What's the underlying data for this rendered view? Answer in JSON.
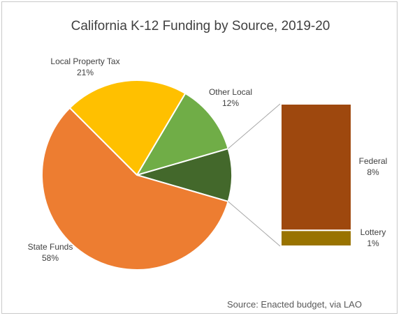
{
  "chart_data": {
    "type": "pie",
    "subtype": "bar-of-pie",
    "title": "California K-12 Funding by Source, 2019-20",
    "source": "Source: Enacted budget, via LAO",
    "slices": [
      {
        "label": "State Funds",
        "value_label": "58%",
        "value": 58,
        "color": "#ED7D31"
      },
      {
        "label": "Local Property Tax",
        "value_label": "21%",
        "value": 21,
        "color": "#FFC000"
      },
      {
        "label": "Other Local",
        "value_label": "12%",
        "value": 12,
        "color": "#70AD47"
      },
      {
        "label": "",
        "value_label": "",
        "value": 9,
        "color": "#43682B",
        "expands_to_bar": true
      }
    ],
    "bar": [
      {
        "label": "Federal",
        "value_label": "8%",
        "value": 8,
        "color": "#9E480E"
      },
      {
        "label": "Lottery",
        "value_label": "1%",
        "value": 1,
        "color": "#997300"
      }
    ]
  }
}
